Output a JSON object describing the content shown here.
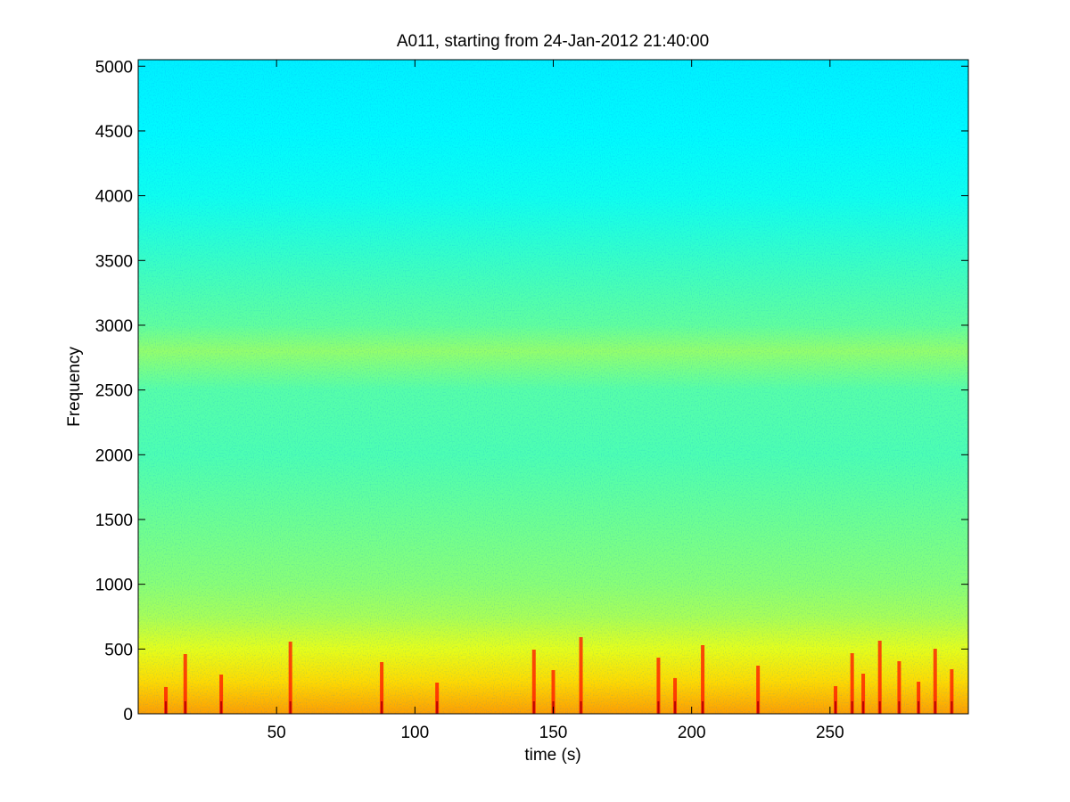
{
  "chart_data": {
    "type": "heatmap",
    "title": "A011, starting from 24-Jan-2012 21:40:00",
    "xlabel": "time (s)",
    "ylabel": "Frequency",
    "xlim": [
      0,
      300
    ],
    "ylim": [
      0,
      5050
    ],
    "xticks": [
      50,
      100,
      150,
      200,
      250
    ],
    "yticks": [
      0,
      500,
      1000,
      1500,
      2000,
      2500,
      3000,
      3500,
      4000,
      4500,
      5000
    ],
    "grid": false,
    "colormap": "jet",
    "colormap_colors": [
      "#00008f",
      "#0000ff",
      "#0080ff",
      "#00ffff",
      "#80ff80",
      "#ffff00",
      "#ff8000",
      "#ff0000",
      "#800000"
    ],
    "intensity_profile": [
      {
        "frequency": 0,
        "level": 0.72
      },
      {
        "frequency": 250,
        "level": 0.66
      },
      {
        "frequency": 500,
        "level": 0.6
      },
      {
        "frequency": 750,
        "level": 0.54
      },
      {
        "frequency": 1000,
        "level": 0.51
      },
      {
        "frequency": 1500,
        "level": 0.48
      },
      {
        "frequency": 2000,
        "level": 0.45
      },
      {
        "frequency": 2500,
        "level": 0.46
      },
      {
        "frequency": 2800,
        "level": 0.52
      },
      {
        "frequency": 3000,
        "level": 0.47
      },
      {
        "frequency": 3500,
        "level": 0.43
      },
      {
        "frequency": 4000,
        "level": 0.39
      },
      {
        "frequency": 4500,
        "level": 0.37
      },
      {
        "frequency": 5050,
        "level": 0.36
      }
    ],
    "high_energy_bursts_time_s": [
      10,
      17,
      30,
      55,
      88,
      108,
      143,
      150,
      160,
      188,
      194,
      204,
      224,
      252,
      258,
      262,
      268,
      275,
      282,
      288,
      294
    ]
  }
}
